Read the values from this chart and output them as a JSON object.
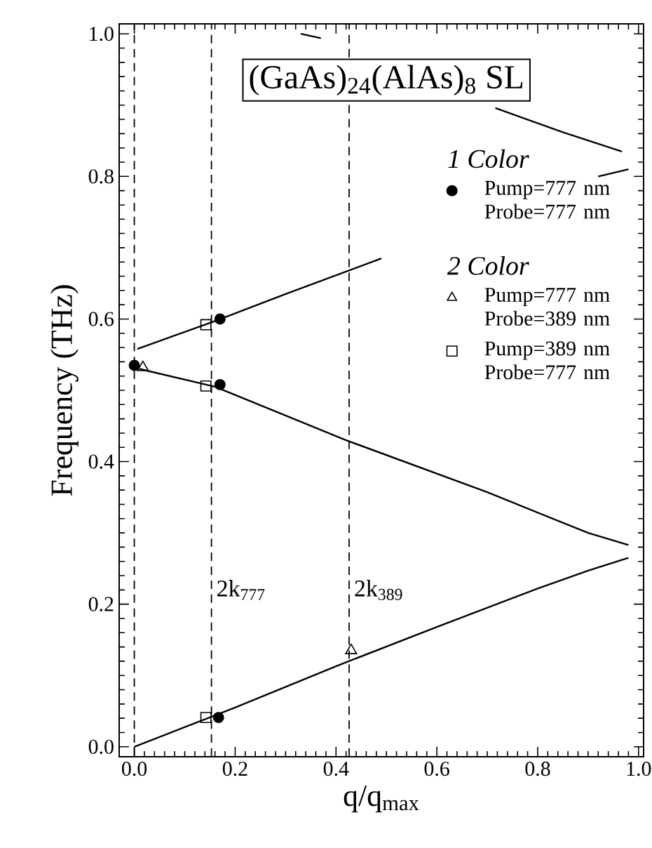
{
  "chart_data": {
    "type": "line",
    "title": "(GaAs)$_{24}$(AlAs)$_{8}$ SL",
    "xlabel": "q/q$_{max}$",
    "ylabel": "Frequency (THz)",
    "xlim": [
      -0.03,
      1.01
    ],
    "ylim": [
      -0.014,
      1.014
    ],
    "xticks": [
      {
        "value": 0,
        "label": "0.0"
      },
      0.2,
      0.4,
      0.6,
      0.8,
      {
        "value": 1,
        "label": "1.0"
      }
    ],
    "yticks": [
      {
        "value": 0,
        "label": "0.0"
      },
      0.2,
      0.4,
      0.6,
      0.8,
      {
        "value": 1,
        "label": "1.0"
      }
    ],
    "legend": "right",
    "grid": false,
    "annotations": [
      "1 Color",
      "2 Color"
    ],
    "ref_lines": [
      {
        "axis": "x",
        "value": 0.0,
        "line_style": "dashed",
        "color": "#000000"
      },
      {
        "axis": "x",
        "value": 0.153,
        "label": "2k$_{777}$",
        "line_style": "dashed",
        "color": "#000000"
      },
      {
        "axis": "x",
        "value": 0.426,
        "label": "2k$_{389}$",
        "line_style": "dashed",
        "color": "#000000"
      }
    ],
    "series": [
      {
        "color": "#000000",
        "marker": "none",
        "x": [
          0,
          0.2,
          0.4,
          0.6,
          0.8,
          0.9,
          0.98
        ],
        "values": [
          0,
          0.055,
          0.113,
          0.168,
          0.222,
          0.247,
          0.265
        ]
      },
      {
        "color": "#000000",
        "marker": "none",
        "x": [
          0.01,
          0.16,
          0.42,
          0.7,
          0.9,
          0.98
        ],
        "values": [
          0.53,
          0.505,
          0.43,
          0.357,
          0.3,
          0.283
        ]
      },
      {
        "color": "#000000",
        "marker": "none",
        "x": [
          0.006,
          0.16,
          0.3,
          0.49
        ],
        "values": [
          0.558,
          0.597,
          0.635,
          0.685
        ]
      },
      {
        "color": "#000000",
        "marker": "none",
        "x": [
          0.33,
          0.37,
          0.55,
          0.716,
          0.85,
          0.967
        ],
        "values": [
          1.0,
          0.994,
          null,
          0.896,
          0.862,
          0.835
        ]
      },
      {
        "color": "#000000",
        "marker": "none",
        "x": [
          0.92,
          0.98
        ],
        "values": [
          0.8,
          0.81
        ]
      },
      {
        "type": "scatter",
        "name": "Pump=777 nm Probe=777 nm",
        "color": "#000000",
        "marker": "circle",
        "x": [
          0.0,
          0.17,
          0.17,
          0.167
        ],
        "values": [
          0.535,
          0.6,
          0.508,
          0.041
        ]
      },
      {
        "type": "scatter",
        "name": "Pump=777 nm Probe=389 nm",
        "color": "#000000",
        "marker": "triangle",
        "x": [
          0.017,
          0.43
        ],
        "values": [
          0.532,
          0.135
        ]
      },
      {
        "type": "scatter",
        "name": "Pump=389 nm Probe=777 nm",
        "color": "#000000",
        "marker": "square",
        "x": [
          0.142,
          0.142,
          0.142
        ],
        "values": [
          0.592,
          0.506,
          0.041
        ]
      }
    ]
  }
}
